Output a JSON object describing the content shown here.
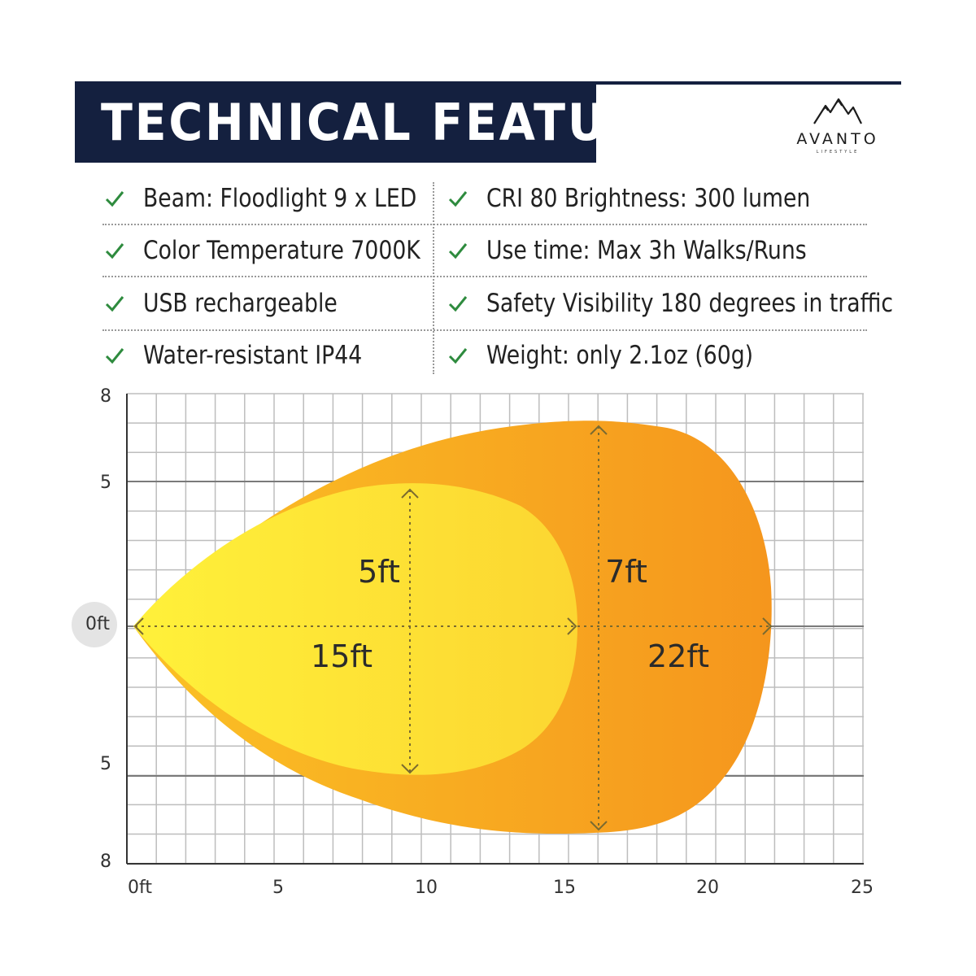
{
  "header": {
    "title": "TECHNICAL FEATURES",
    "brand_name": "AVANTO",
    "brand_tagline": "LIFESTYLE",
    "colors": {
      "navy": "#14203f",
      "check_green": "#2e8b3e"
    }
  },
  "features": [
    {
      "icon": "check-icon",
      "label": "Beam: Floodlight 9 x LED"
    },
    {
      "icon": "check-icon",
      "label": "CRI 80 Brightness: 300 lumen"
    },
    {
      "icon": "check-icon",
      "label": "Color Temperature 7000K"
    },
    {
      "icon": "check-icon",
      "label": "Use time: Max 3h Walks/Runs"
    },
    {
      "icon": "check-icon",
      "label": "USB rechargeable"
    },
    {
      "icon": "check-icon",
      "label": "Safety Visibility 180 degrees in traffic"
    },
    {
      "icon": "check-icon",
      "label": "Water-resistant IP44"
    },
    {
      "icon": "check-icon",
      "label": "Weight: only 2.1oz (60g)"
    }
  ],
  "beam_diagram": {
    "x_ticks": [
      "0ft",
      "5",
      "10",
      "15",
      "20",
      "25"
    ],
    "y_ticks": [
      "8",
      "5",
      "0ft",
      "5",
      "8"
    ],
    "inner_beam": {
      "width_label": "5ft",
      "length_label": "15ft",
      "color": "#fde032"
    },
    "outer_beam": {
      "width_label": "7ft",
      "length_label": "22ft",
      "color": "#f7a221"
    }
  }
}
